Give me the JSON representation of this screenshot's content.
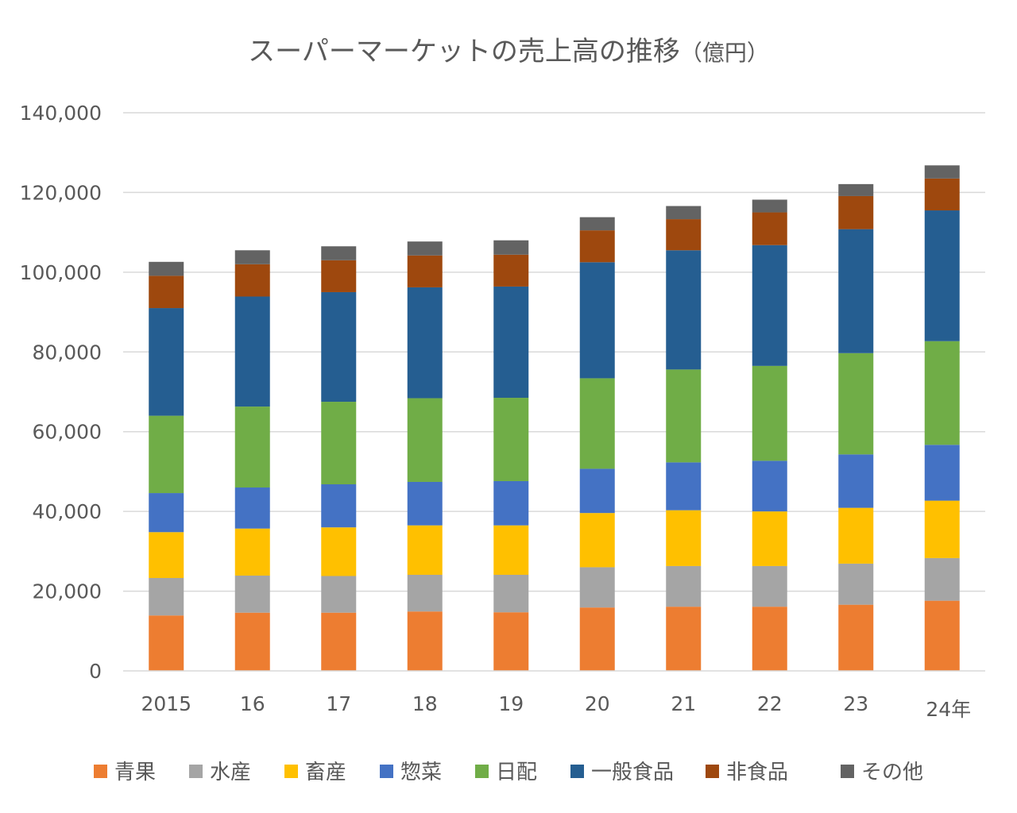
{
  "chart_data": {
    "type": "bar",
    "stacked": true,
    "title": "スーパーマーケットの売上高の推移",
    "title_unit": "（億円）",
    "xlabel": "",
    "ylabel": "",
    "categories": [
      "2015",
      "16",
      "17",
      "18",
      "19",
      "20",
      "21",
      "22",
      "23",
      "24年"
    ],
    "ylim": [
      0,
      140000
    ],
    "yticks": [
      0,
      20000,
      40000,
      60000,
      80000,
      100000,
      120000,
      140000
    ],
    "ytick_labels": [
      "0",
      "20,000",
      "40,000",
      "60,000",
      "80,000",
      "100,000",
      "120,000",
      "140,000"
    ],
    "grid": true,
    "legend_position": "bottom",
    "series": [
      {
        "name": "青果",
        "color": "#ED7D31",
        "values": [
          13900,
          14600,
          14600,
          14900,
          14700,
          15900,
          16100,
          16100,
          16600,
          17600
        ]
      },
      {
        "name": "水産",
        "color": "#A5A5A5",
        "values": [
          9400,
          9300,
          9200,
          9200,
          9400,
          10100,
          10200,
          10200,
          10300,
          10700
        ]
      },
      {
        "name": "畜産",
        "color": "#FFC000",
        "values": [
          11500,
          11800,
          12200,
          12400,
          12400,
          13600,
          14000,
          13700,
          14000,
          14400
        ]
      },
      {
        "name": "惣菜",
        "color": "#4472C4",
        "values": [
          9800,
          10300,
          10800,
          10900,
          11100,
          11100,
          12000,
          12700,
          13400,
          14000
        ]
      },
      {
        "name": "日配",
        "color": "#70AD47",
        "values": [
          19400,
          20300,
          20700,
          21000,
          20900,
          22700,
          23300,
          23800,
          25400,
          26000
        ]
      },
      {
        "name": "一般食品",
        "color": "#255E91",
        "values": [
          27000,
          27600,
          27500,
          27800,
          27900,
          29100,
          29900,
          30300,
          31100,
          32800
        ]
      },
      {
        "name": "非食品",
        "color": "#9E480E",
        "values": [
          8100,
          8100,
          8000,
          8000,
          8000,
          8000,
          7800,
          8200,
          8300,
          8000
        ]
      },
      {
        "name": "その他",
        "color": "#636363",
        "values": [
          3500,
          3500,
          3500,
          3500,
          3600,
          3300,
          3300,
          3200,
          3000,
          3300
        ]
      }
    ]
  }
}
